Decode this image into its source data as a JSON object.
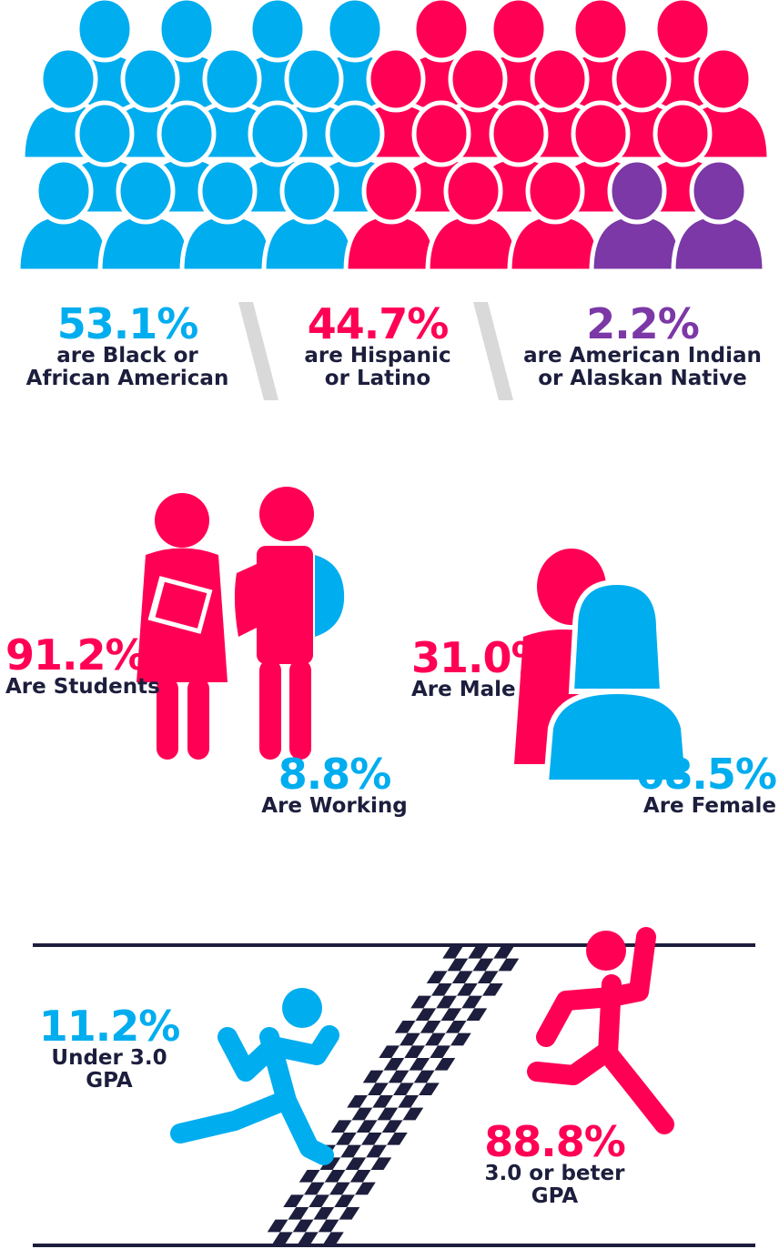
{
  "colors": {
    "blue": "#00adef",
    "red": "#ff0055",
    "purple": "#7b38a6",
    "navy": "#1d1e3d",
    "divider": "#d9d9d9"
  },
  "ethnicity": {
    "black": {
      "pct": "53.1%",
      "label_1": "are Black or",
      "label_2": "African American"
    },
    "hispanic": {
      "pct": "44.7%",
      "label_1": "are Hispanic",
      "label_2": "or Latino"
    },
    "native": {
      "pct": "2.2%",
      "label_1": "are American Indian",
      "label_2": "or Alaskan Native"
    }
  },
  "occupation": {
    "students": {
      "pct": "91.2%",
      "label": "Are Students"
    },
    "working": {
      "pct": "8.8%",
      "label": "Are Working"
    }
  },
  "gender": {
    "male": {
      "pct": "31.0%",
      "label": "Are Male"
    },
    "female": {
      "pct": "68.5%",
      "label": "Are Female"
    }
  },
  "gpa": {
    "under": {
      "pct": "11.2%",
      "label_1": "Under 3.0",
      "label_2": "GPA"
    },
    "over": {
      "pct": "88.8%",
      "label_1": "3.0 or beter",
      "label_2": "GPA"
    }
  }
}
